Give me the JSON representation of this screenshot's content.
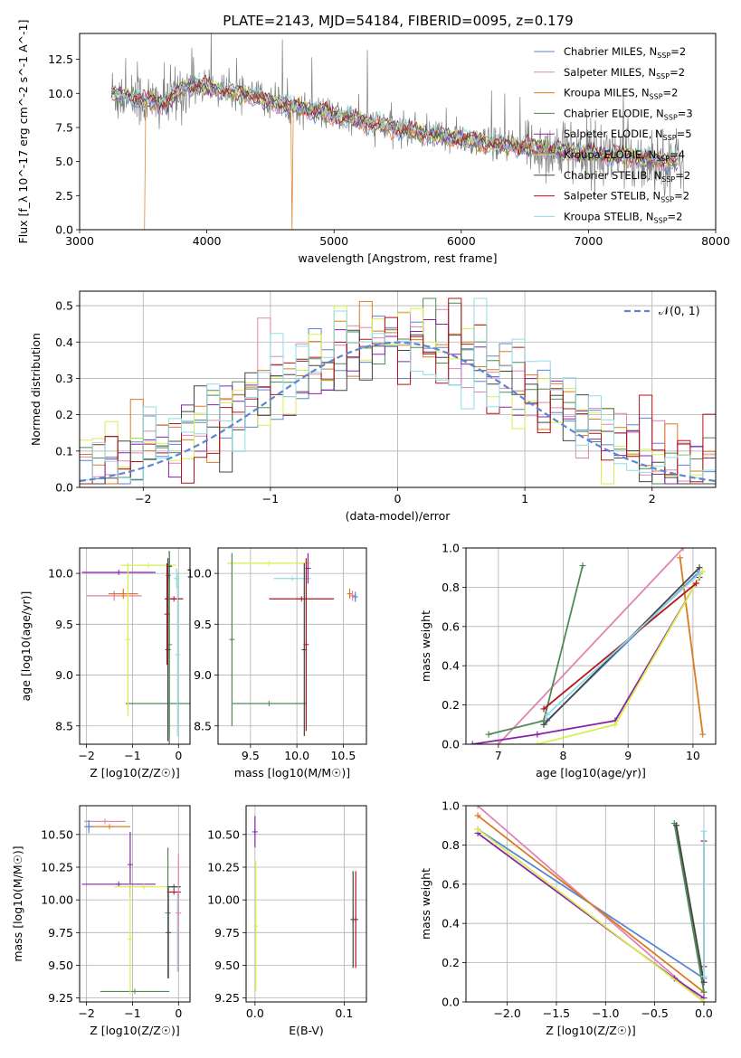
{
  "title": "PLATE=2143, MJD=54184, FIBERID=0095, z=0.179",
  "models": [
    {
      "label": "Chabrier MILES",
      "nssp": "2",
      "color": "#5b86d4"
    },
    {
      "label": "Salpeter MILES",
      "nssp": "2",
      "color": "#e183b2"
    },
    {
      "label": "Kroupa MILES",
      "nssp": "2",
      "color": "#db7b22"
    },
    {
      "label": "Chabrier ELODIE",
      "nssp": "3",
      "color": "#4f8a55"
    },
    {
      "label": "Salpeter ELODIE",
      "nssp": "5",
      "color": "#8a23a8"
    },
    {
      "label": "Kroupa ELODIE",
      "nssp": "4",
      "color": "#d8ef4a"
    },
    {
      "label": "Chabrier STELIB",
      "nssp": "2",
      "color": "#444444"
    },
    {
      "label": "Salpeter STELIB",
      "nssp": "2",
      "color": "#b3141c"
    },
    {
      "label": "Kroupa STELIB",
      "nssp": "2",
      "color": "#8fdde5"
    }
  ],
  "chart_data": [
    {
      "id": "spectrum",
      "type": "line",
      "xlabel": "wavelength [Angstrom, rest frame]",
      "ylabel": "Flux [f_λ 10^-17 erg cm^-2 s^-1 A^-1]",
      "xlim": [
        3000,
        8000
      ],
      "ylim": [
        0,
        14.4
      ],
      "xticks": [
        3000,
        4000,
        5000,
        6000,
        7000,
        8000
      ],
      "yticks": [
        0.0,
        2.5,
        5.0,
        7.5,
        10.0,
        12.5
      ],
      "xtick_labels": [
        "3000",
        "4000",
        "5000",
        "6000",
        "7000",
        "8000"
      ],
      "ytick_labels": [
        "0.0",
        "2.5",
        "5.0",
        "7.5",
        "10.0",
        "12.5"
      ],
      "legend": "right",
      "data_color": "#808080",
      "continuum": {
        "x": [
          3250,
          3400,
          3600,
          3700,
          3800,
          3900,
          4000,
          4100,
          4200,
          4300,
          4400,
          4500,
          4700,
          4900,
          5100,
          5300,
          5500,
          5700,
          5900,
          6100,
          6300,
          6500,
          6700,
          6900,
          7100,
          7300,
          7500,
          7700
        ],
        "y": [
          10.0,
          9.7,
          9.3,
          9.4,
          10.3,
          10.6,
          10.4,
          10.3,
          10.0,
          9.9,
          9.7,
          9.4,
          9.0,
          8.6,
          8.2,
          7.8,
          7.4,
          7.1,
          6.8,
          6.5,
          6.2,
          6.1,
          5.9,
          5.7,
          5.5,
          5.4,
          5.2,
          5.0
        ]
      }
    },
    {
      "id": "residuals",
      "type": "histogram",
      "xlabel": "(data-model)/error",
      "ylabel": "Normed distribution",
      "xlim": [
        -2.5,
        2.5
      ],
      "ylim": [
        0,
        0.54
      ],
      "xticks": [
        -2,
        -1,
        0,
        1,
        2
      ],
      "yticks": [
        0.0,
        0.1,
        0.2,
        0.3,
        0.4,
        0.5
      ],
      "xtick_labels": [
        "−2",
        "−1",
        "0",
        "1",
        "2"
      ],
      "ytick_labels": [
        "0.0",
        "0.1",
        "0.2",
        "0.3",
        "0.4",
        "0.5"
      ],
      "bin_width": 0.1,
      "normal_label": "𝒩(0, 1)",
      "normal_color": "#5b86d4",
      "legend": "top-right"
    },
    {
      "id": "age_vs_Z",
      "type": "errorbar",
      "xlabel": "Z [log10(Z/Z☉)]",
      "ylabel": "age  [log10(age/yr)]",
      "xlim": [
        -2.15,
        0.25
      ],
      "ylim": [
        8.32,
        10.25
      ],
      "xticks": [
        -2,
        -1,
        0
      ],
      "yticks": [
        8.5,
        9.0,
        9.5,
        10.0
      ],
      "xtick_labels": [
        "−2",
        "−1",
        "0"
      ],
      "ytick_labels": [
        "8.5",
        "9.0",
        "9.5",
        "10.0"
      ],
      "points": [
        {
          "m": 0,
          "x": -0.22,
          "xe": 0.0,
          "y": 9.98,
          "ye": 0.0
        },
        {
          "m": 1,
          "x": -1.4,
          "xe": 0.6,
          "y": 9.78,
          "ye": 0.05
        },
        {
          "m": 2,
          "x": -1.2,
          "xe": 0.32,
          "y": 9.8,
          "ye": 0.05
        },
        {
          "m": 3,
          "x": -0.2,
          "xe": 0.95,
          "y": 8.72,
          "ye": 1.45
        },
        {
          "m": 4,
          "x": -1.3,
          "xe": 0.8,
          "y": 10.01,
          "ye": 0.0
        },
        {
          "m": 5,
          "x": -0.65,
          "xe": 0.6,
          "y": 10.08,
          "ye": 0.0
        },
        {
          "m": 6,
          "x": -0.2,
          "xe": 0.05,
          "y": 10.07,
          "ye": 0.15
        },
        {
          "m": 7,
          "x": -0.1,
          "xe": 0.2,
          "y": 9.75,
          "ye": 0.0
        },
        {
          "m": 8,
          "x": -0.04,
          "xe": 0.05,
          "y": 9.95,
          "ye": 0.1
        },
        {
          "m": 3,
          "x": -0.2,
          "xe": 0.0,
          "y": 9.3,
          "ye": 0.9
        },
        {
          "m": 6,
          "x": -0.23,
          "xe": 0.0,
          "y": 9.25,
          "ye": 0.9
        },
        {
          "m": 8,
          "x": -0.02,
          "xe": 0.0,
          "y": 9.2,
          "ye": 0.8
        },
        {
          "m": 5,
          "x": -1.1,
          "xe": 0.0,
          "y": 9.35,
          "ye": 0.75
        },
        {
          "m": 7,
          "x": -0.25,
          "xe": 0.0,
          "y": 9.6,
          "ye": 0.5
        }
      ]
    },
    {
      "id": "age_vs_mass",
      "type": "errorbar",
      "xlabel": "mass [log10(M/M☉)]",
      "ylabel": "",
      "xlim": [
        9.15,
        10.75
      ],
      "ylim": [
        8.32,
        10.25
      ],
      "xticks": [
        9.5,
        10.0,
        10.5
      ],
      "yticks": [
        8.5,
        9.0,
        9.5,
        10.0
      ],
      "xtick_labels": [
        "9.5",
        "10.0",
        "10.5"
      ],
      "ytick_labels": [
        "8.5",
        "9.0",
        "9.5",
        "10.0"
      ],
      "points": [
        {
          "m": 3,
          "x": 9.7,
          "xe": 0.4,
          "y": 8.72,
          "ye": 0.0
        },
        {
          "m": 5,
          "x": 9.7,
          "xe": 0.45,
          "y": 10.1,
          "ye": 0.0
        },
        {
          "m": 8,
          "x": 9.95,
          "xe": 0.2,
          "y": 9.95,
          "ye": 0.0
        },
        {
          "m": 7,
          "x": 10.05,
          "xe": 0.35,
          "y": 9.75,
          "ye": 0.0
        },
        {
          "m": 4,
          "x": 10.12,
          "xe": 0.0,
          "y": 10.05,
          "ye": 0.15
        },
        {
          "m": 6,
          "x": 10.08,
          "xe": 0.0,
          "y": 9.25,
          "ye": 0.85
        },
        {
          "m": 3,
          "x": 9.3,
          "xe": 0.0,
          "y": 9.35,
          "ye": 0.85
        },
        {
          "m": 7,
          "x": 10.1,
          "xe": 0.0,
          "y": 9.3,
          "ye": 0.85
        },
        {
          "m": 2,
          "x": 10.57,
          "xe": 0.02,
          "y": 9.8,
          "ye": 0.05
        },
        {
          "m": 1,
          "x": 10.6,
          "xe": 0.02,
          "y": 9.78,
          "ye": 0.05
        },
        {
          "m": 0,
          "x": 10.63,
          "xe": 0.02,
          "y": 9.77,
          "ye": 0.05
        }
      ]
    },
    {
      "id": "weight_vs_age",
      "type": "line",
      "xlabel": "age  [log10(age/yr)]",
      "ylabel": "mass weight",
      "xlim": [
        6.5,
        10.35
      ],
      "ylim": [
        0,
        1
      ],
      "xticks": [
        7,
        8,
        9,
        10
      ],
      "yticks": [
        0.0,
        0.2,
        0.4,
        0.6,
        0.8,
        1.0
      ],
      "xtick_labels": [
        "7",
        "8",
        "9",
        "10"
      ],
      "ytick_labels": [
        "0.0",
        "0.2",
        "0.4",
        "0.6",
        "0.8",
        "1.0"
      ],
      "series": [
        {
          "m": 0,
          "x": [
            7.75,
            10.1
          ],
          "y": [
            0.12,
            0.88
          ]
        },
        {
          "m": 1,
          "x": [
            7.0,
            9.85
          ],
          "y": [
            0.0,
            1.0
          ]
        },
        {
          "m": 2,
          "x": [
            9.8,
            10.15
          ],
          "y": [
            0.95,
            0.05
          ]
        },
        {
          "m": 3,
          "x": [
            6.85,
            7.7,
            8.3
          ],
          "y": [
            0.05,
            0.12,
            0.91
          ]
        },
        {
          "m": 4,
          "x": [
            6.6,
            7.6,
            8.8,
            10.1
          ],
          "y": [
            0.0,
            0.05,
            0.12,
            0.85
          ]
        },
        {
          "m": 5,
          "x": [
            7.6,
            8.8,
            10.15
          ],
          "y": [
            0.0,
            0.1,
            0.88
          ]
        },
        {
          "m": 6,
          "x": [
            7.7,
            10.1
          ],
          "y": [
            0.1,
            0.9
          ]
        },
        {
          "m": 7,
          "x": [
            7.7,
            10.05
          ],
          "y": [
            0.18,
            0.82
          ]
        },
        {
          "m": 8,
          "x": [
            7.75,
            10.1
          ],
          "y": [
            0.15,
            0.87
          ]
        }
      ]
    },
    {
      "id": "mass_vs_Z",
      "type": "errorbar",
      "xlabel": "Z [log10(Z/Z☉)]",
      "ylabel": "mass [log10(M/M☉)]",
      "xlim": [
        -2.15,
        0.25
      ],
      "ylim": [
        9.22,
        10.72
      ],
      "xticks": [
        -2,
        -1,
        0
      ],
      "yticks": [
        9.25,
        9.5,
        9.75,
        10.0,
        10.25,
        10.5
      ],
      "xtick_labels": [
        "−2",
        "−1",
        "0"
      ],
      "ytick_labels": [
        "9.25",
        "9.50",
        "9.75",
        "10.00",
        "10.25",
        "10.50"
      ],
      "points": [
        {
          "m": 1,
          "x": -1.6,
          "xe": 0.45,
          "y": 10.6,
          "ye": 0.0
        },
        {
          "m": 2,
          "x": -1.5,
          "xe": 0.45,
          "y": 10.56,
          "ye": 0.0
        },
        {
          "m": 0,
          "x": -1.95,
          "xe": 0.1,
          "y": 10.56,
          "ye": 0.05
        },
        {
          "m": 4,
          "x": -1.3,
          "xe": 0.8,
          "y": 10.12,
          "ye": 0.0
        },
        {
          "m": 5,
          "x": -0.75,
          "xe": 0.65,
          "y": 10.1,
          "ye": 0.0
        },
        {
          "m": 6,
          "x": -0.1,
          "xe": 0.15,
          "y": 10.1,
          "ye": 0.0
        },
        {
          "m": 7,
          "x": -0.1,
          "xe": 0.15,
          "y": 10.06,
          "ye": 0.0
        },
        {
          "m": 3,
          "x": -0.95,
          "xe": 0.75,
          "y": 9.3,
          "ye": 0.0
        },
        {
          "m": 4,
          "x": -1.05,
          "xe": 0.0,
          "y": 10.27,
          "ye": 0.25
        },
        {
          "m": 5,
          "x": -1.05,
          "xe": 0.0,
          "y": 9.7,
          "ye": 0.42
        },
        {
          "m": 3,
          "x": -0.23,
          "xe": 0.0,
          "y": 9.9,
          "ye": 0.5
        },
        {
          "m": 6,
          "x": -0.22,
          "xe": 0.0,
          "y": 9.75,
          "ye": 0.35
        },
        {
          "m": 8,
          "x": -0.02,
          "xe": 0.0,
          "y": 9.75,
          "ye": 0.3
        },
        {
          "m": 1,
          "x": 0.0,
          "xe": 0.0,
          "y": 9.9,
          "ye": 0.45
        }
      ]
    },
    {
      "id": "mass_vs_EBV",
      "type": "errorbar",
      "xlabel": "E(B-V)",
      "ylabel": "",
      "xlim": [
        -0.01,
        0.125
      ],
      "ylim": [
        9.22,
        10.72
      ],
      "xticks": [
        0.0,
        0.1
      ],
      "yticks": [
        9.25,
        9.5,
        9.75,
        10.0,
        10.25,
        10.5
      ],
      "xtick_labels": [
        "0.0",
        "0.1"
      ],
      "ytick_labels": [
        "9.25",
        "9.50",
        "9.75",
        "10.00",
        "10.25",
        "10.50"
      ],
      "points": [
        {
          "m": 4,
          "x": 0.0,
          "xe": 0.0,
          "y": 10.52,
          "ye": 0.12
        },
        {
          "m": 5,
          "x": 0.001,
          "xe": 0.0,
          "y": 9.8,
          "ye": 0.5
        },
        {
          "m": 7,
          "x": 0.113,
          "xe": 0.0,
          "y": 9.85,
          "ye": 0.37
        },
        {
          "m": 6,
          "x": 0.11,
          "xe": 0.0,
          "y": 9.85,
          "ye": 0.37
        }
      ]
    },
    {
      "id": "weight_vs_Z",
      "type": "line",
      "xlabel": "Z [log10(Z/Z☉)]",
      "ylabel": "mass weight",
      "xlim": [
        -2.42,
        0.12
      ],
      "ylim": [
        0,
        1
      ],
      "xticks": [
        -2.0,
        -1.5,
        -1.0,
        -0.5,
        0.0
      ],
      "yticks": [
        0.0,
        0.2,
        0.4,
        0.6,
        0.8,
        1.0
      ],
      "xtick_labels": [
        "−2.0",
        "−1.5",
        "−1.0",
        "−0.5",
        "0.0"
      ],
      "ytick_labels": [
        "0.0",
        "0.2",
        "0.4",
        "0.6",
        "0.8",
        "1.0"
      ],
      "series": [
        {
          "m": 0,
          "x": [
            -2.3,
            0.0
          ],
          "y": [
            0.88,
            0.12
          ]
        },
        {
          "m": 1,
          "x": [
            -2.3,
            0.0
          ],
          "y": [
            1.0,
            0.0
          ]
        },
        {
          "m": 2,
          "x": [
            -2.3,
            0.0
          ],
          "y": [
            0.95,
            0.05
          ]
        },
        {
          "m": 3,
          "x": [
            -0.3,
            0.0
          ],
          "y": [
            0.91,
            0.05
          ]
        },
        {
          "m": 4,
          "x": [
            -2.3,
            -0.3,
            0.0
          ],
          "y": [
            0.86,
            0.12,
            0.02
          ]
        },
        {
          "m": 5,
          "x": [
            -2.3,
            0.0
          ],
          "y": [
            0.88,
            0.0
          ]
        },
        {
          "m": 6,
          "x": [
            -0.28,
            0.0
          ],
          "y": [
            0.9,
            0.1
          ]
        },
        {
          "m": 7,
          "x": [
            0.0,
            0.0
          ],
          "y": [
            0.82,
            0.18
          ]
        },
        {
          "m": 8,
          "x": [
            0.0,
            0.0
          ],
          "y": [
            0.87,
            0.13
          ]
        }
      ]
    }
  ]
}
